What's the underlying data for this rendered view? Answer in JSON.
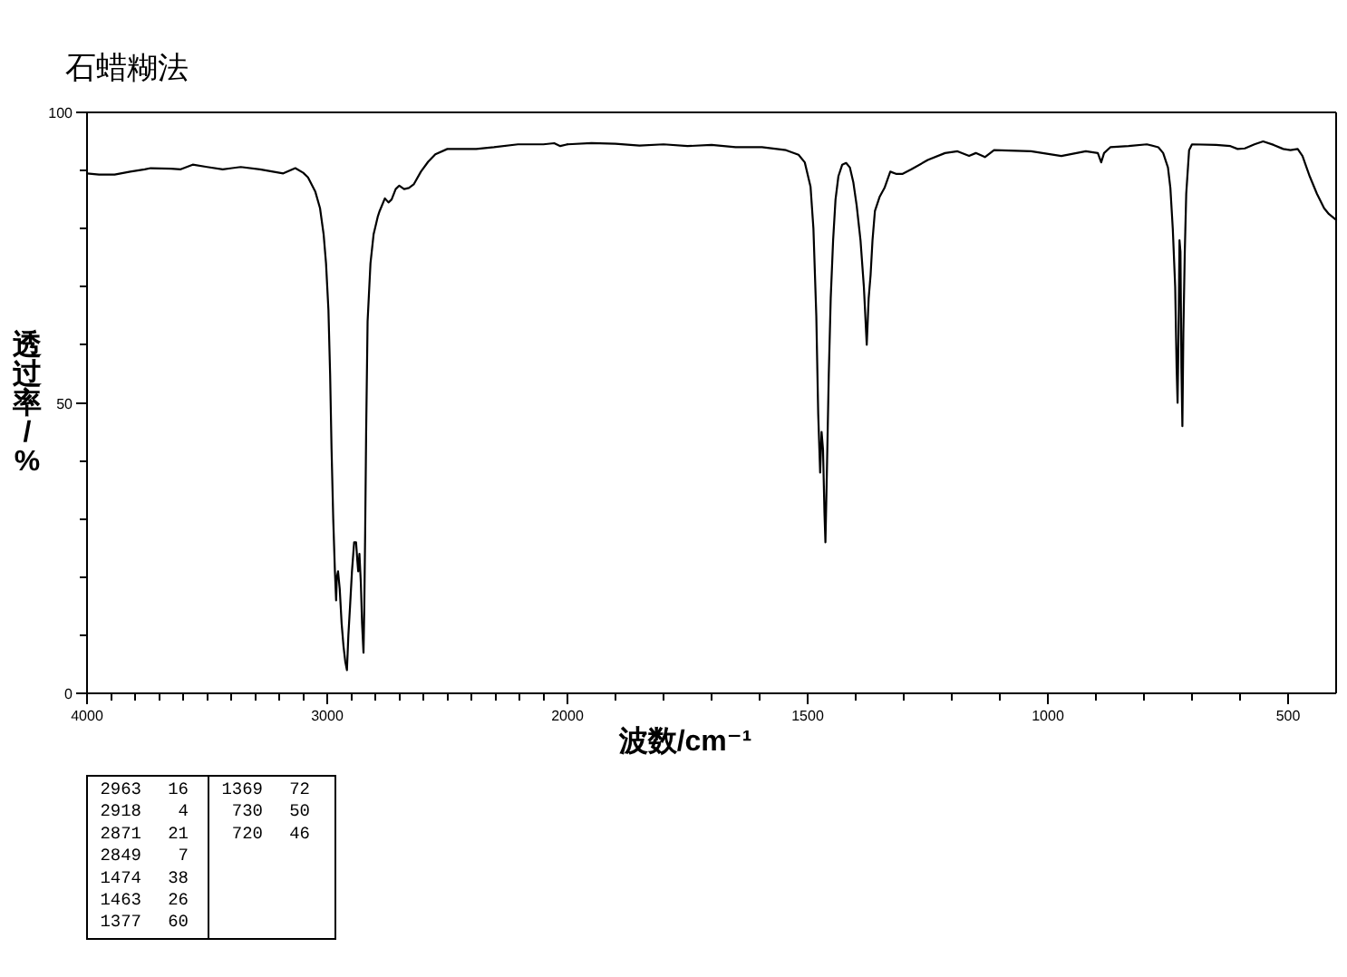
{
  "chart_data": [
    {
      "type": "line",
      "title": "石蜡糊法",
      "ylabel": "透过率/%",
      "color": "#000000",
      "x": [
        4000,
        3950,
        3885,
        3820,
        3760,
        3735,
        3650,
        3610,
        3560,
        3500,
        3435,
        3360,
        3280,
        3183,
        3133,
        3100,
        3080,
        3050,
        3030,
        3015,
        3005,
        2995,
        2988,
        2982,
        2975,
        2968,
        2963,
        2960,
        2955,
        2948,
        2940,
        2932,
        2925,
        2918,
        2912,
        2905,
        2897,
        2888,
        2880,
        2875,
        2871,
        2866,
        2860,
        2855,
        2849,
        2846,
        2842,
        2838,
        2832,
        2820,
        2807,
        2790,
        2782,
        2760,
        2745,
        2732,
        2715,
        2700,
        2680,
        2660,
        2640,
        2610,
        2580,
        2550,
        2500,
        2480,
        2380,
        2306,
        2206,
        2100,
        2055,
        2030,
        2000
      ],
      "values": [
        89.5,
        89.3,
        89.3,
        89.8,
        90.2,
        90.4,
        90.3,
        90.2,
        91,
        90.6,
        90.2,
        90.6,
        90.2,
        89.5,
        90.4,
        89.6,
        88.8,
        86.4,
        83.5,
        79,
        74,
        66,
        55,
        42,
        30,
        21,
        16,
        20,
        21,
        18,
        12,
        8,
        5.5,
        4,
        10,
        15,
        21,
        26,
        26,
        23,
        21,
        24,
        19,
        12,
        7,
        14,
        28,
        45,
        64,
        74,
        79,
        82,
        83,
        85.2,
        84.5,
        85,
        86.8,
        87.4,
        86.8,
        87,
        87.6,
        89.8,
        91.5,
        92.8,
        93.7,
        93.7,
        93.7,
        94,
        94.5,
        94.5,
        94.7,
        94.2,
        94.5
      ],
      "xlim": [
        4000,
        2000
      ],
      "xticks": [
        4000,
        {
          "value": 3900,
          "label": null
        },
        {
          "value": 3800,
          "label": null
        },
        {
          "value": 3700,
          "label": null
        },
        {
          "value": 3600,
          "label": null
        },
        {
          "value": 3500,
          "label": null
        },
        {
          "value": 3400,
          "label": null
        },
        {
          "value": 3300,
          "label": null
        },
        {
          "value": 3200,
          "label": null
        },
        {
          "value": 3100,
          "label": null
        },
        3000,
        {
          "value": 2900,
          "label": null
        },
        {
          "value": 2800,
          "label": null
        },
        {
          "value": 2700,
          "label": null
        },
        {
          "value": 2600,
          "label": null
        },
        {
          "value": 2500,
          "label": null
        },
        {
          "value": 2400,
          "label": null
        },
        {
          "value": 2300,
          "label": null
        },
        {
          "value": 2200,
          "label": null
        },
        {
          "value": 2100,
          "label": null
        }
      ],
      "ylim": [
        0,
        100
      ],
      "yticks": [
        0,
        {
          "value": 10,
          "label": null
        },
        {
          "value": 20,
          "label": null
        },
        {
          "value": 30,
          "label": null
        },
        {
          "value": 40,
          "label": null
        },
        50,
        {
          "value": 60,
          "label": null
        },
        {
          "value": 70,
          "label": null
        },
        {
          "value": 80,
          "label": null
        },
        {
          "value": 90,
          "label": null
        },
        100
      ],
      "annotations": [
        "2963 16",
        "2918 4",
        "2871 21",
        "2849 7",
        "1474 38",
        "1463 26",
        "1377 60",
        "1369 72",
        "730 50",
        "720 46"
      ]
    },
    {
      "type": "line",
      "xlabel": "波数/cm⁻¹",
      "color": "#000000",
      "x": [
        2000,
        1950,
        1900,
        1850,
        1800,
        1750,
        1700,
        1650,
        1595,
        1545,
        1519,
        1506,
        1494,
        1488,
        1482,
        1478,
        1474,
        1471,
        1468,
        1465,
        1463,
        1460,
        1456,
        1452,
        1447,
        1442,
        1436,
        1428,
        1420,
        1412,
        1405,
        1398,
        1390,
        1383,
        1377,
        1373,
        1369,
        1365,
        1360,
        1350,
        1340,
        1328,
        1315,
        1303,
        1284,
        1250,
        1214,
        1188,
        1164,
        1150,
        1131,
        1112,
        1035,
        972,
        921,
        896,
        889,
        883,
        870,
        832,
        794,
        770,
        760,
        750,
        745,
        740,
        735,
        732,
        730,
        728,
        726,
        724,
        722,
        720,
        718,
        715,
        712,
        706,
        700,
        650,
        620,
        605,
        590,
        570,
        552,
        530,
        510,
        495,
        480,
        470,
        455,
        440,
        425,
        415,
        400
      ],
      "values": [
        94.5,
        94.7,
        94.6,
        94.3,
        94.5,
        94.2,
        94.4,
        94,
        94,
        93.5,
        92.7,
        91.4,
        87.2,
        80,
        65,
        48,
        38,
        45,
        42,
        31,
        26,
        38,
        55,
        68,
        78,
        85,
        89,
        91,
        91.3,
        90.5,
        88,
        84,
        78,
        70,
        60,
        68,
        72,
        78,
        83,
        85.5,
        87,
        89.8,
        89.4,
        89.4,
        90.2,
        91.8,
        93,
        93.3,
        92.5,
        93,
        92.3,
        93.5,
        93.3,
        92.5,
        93.3,
        93,
        91.4,
        93,
        94,
        94.2,
        94.5,
        94,
        93,
        90.5,
        87,
        80,
        70,
        56,
        50,
        62,
        78,
        76,
        56,
        46,
        62,
        76,
        86,
        93.5,
        94.5,
        94.4,
        94.2,
        93.7,
        93.8,
        94.5,
        95,
        94.4,
        93.7,
        93.5,
        93.7,
        92.5,
        89,
        86,
        83.5,
        82.5,
        81.5
      ],
      "xlim": [
        2000,
        400
      ],
      "xticks": [
        2000,
        {
          "value": 1900,
          "label": null
        },
        {
          "value": 1800,
          "label": null
        },
        {
          "value": 1700,
          "label": null
        },
        {
          "value": 1600,
          "label": null
        },
        1500,
        {
          "value": 1400,
          "label": null
        },
        {
          "value": 1300,
          "label": null
        },
        {
          "value": 1200,
          "label": null
        },
        {
          "value": 1100,
          "label": null
        },
        1000,
        {
          "value": 900,
          "label": null
        },
        {
          "value": 800,
          "label": null
        },
        {
          "value": 700,
          "label": null
        },
        {
          "value": 600,
          "label": null
        },
        500
      ],
      "ylim": [
        0,
        100
      ],
      "tick_labels": "x"
    }
  ]
}
